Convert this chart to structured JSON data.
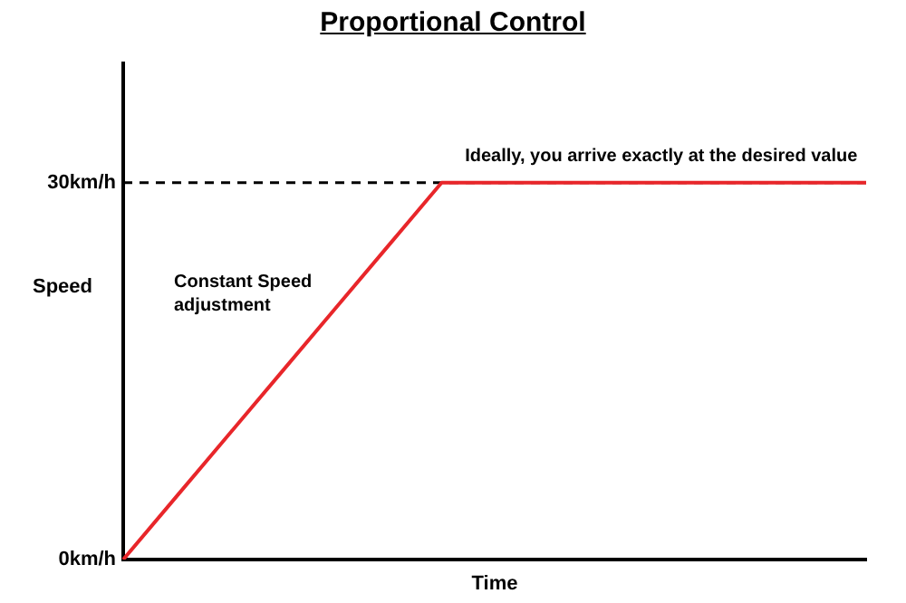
{
  "chart_data": {
    "type": "line",
    "title": "Proportional Control",
    "xlabel": "Time",
    "ylabel": "Speed",
    "categories": [
      null,
      null,
      null,
      null,
      null,
      null,
      null,
      null,
      null,
      null,
      null,
      null,
      null,
      null,
      null
    ],
    "series": [
      {
        "color": "#e8262a",
        "values": [
          0,
          5,
          10,
          15,
          20,
          25,
          30,
          30,
          30,
          30,
          30,
          30,
          30,
          30,
          30
        ]
      }
    ],
    "ylim": [
      0,
      39.5
    ],
    "yticks": [
      {
        "value": 0,
        "label": "0km/h"
      },
      {
        "value": 30,
        "label": "30km/h"
      }
    ],
    "tick_labels": "y",
    "grid": false,
    "legend": false,
    "marker": "none",
    "line_style": "solid",
    "ref_lines": [
      {
        "axis": "y",
        "value": 30,
        "label": null,
        "color": "#000000",
        "line_style": "dashed"
      }
    ],
    "annotations": [
      {
        "text": "Ideally, you arrive exactly at the desired value",
        "y": 30
      },
      "Constant Speed adjustment"
    ]
  }
}
